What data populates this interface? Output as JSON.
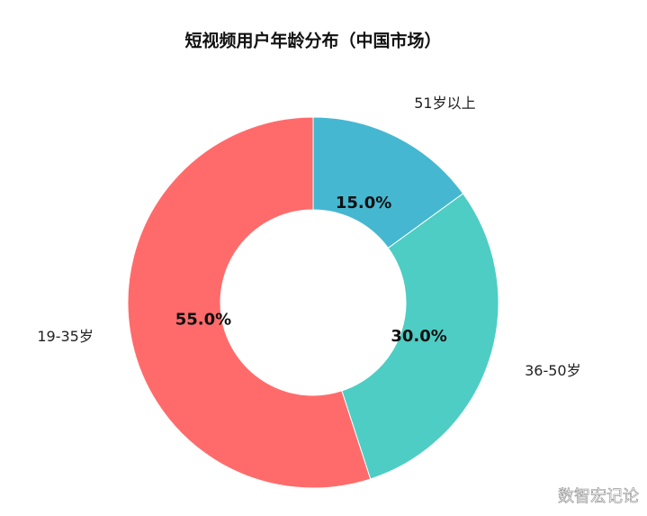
{
  "chart_data": {
    "type": "donut",
    "title": "短视频用户年龄分布（中国市场）",
    "categories": [
      "51岁以上",
      "36-50岁",
      "19-35岁"
    ],
    "values": [
      15,
      30,
      55
    ],
    "value_labels": [
      "15.0%",
      "30.0%",
      "55.0%"
    ],
    "colors": [
      "#45B7D1",
      "#4ECDC4",
      "#FF6B6B"
    ]
  },
  "watermark": "数智宏记论"
}
